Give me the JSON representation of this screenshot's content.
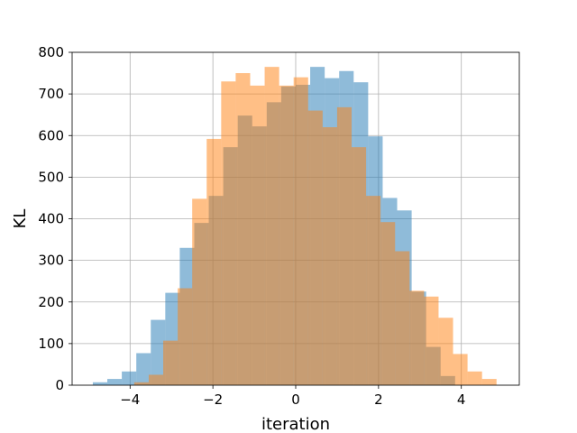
{
  "chart_data": {
    "type": "bar",
    "xlabel": "iteration",
    "ylabel": "KL",
    "xlim": [
      -5.4,
      5.4
    ],
    "ylim": [
      0,
      800
    ],
    "xticks": [
      -4,
      -2,
      0,
      2,
      4
    ],
    "xtick_labels": [
      "−4",
      "−2",
      "0",
      "2",
      "4"
    ],
    "yticks": [
      0,
      100,
      200,
      300,
      400,
      500,
      600,
      700,
      800
    ],
    "ytick_labels": [
      "0",
      "100",
      "200",
      "300",
      "400",
      "500",
      "600",
      "700",
      "800"
    ],
    "grid": true,
    "series": [
      {
        "color": "#1f77b4",
        "alpha": 0.5,
        "bin_edges": [
          -4.9,
          -4.55,
          -4.2,
          -3.85,
          -3.5,
          -3.15,
          -2.8,
          -2.45,
          -2.1,
          -1.75,
          -1.4,
          -1.05,
          -0.7,
          -0.35,
          0.0,
          0.35,
          0.7,
          1.05,
          1.4,
          1.75,
          2.1,
          2.45,
          2.8,
          3.15,
          3.5,
          3.85
        ],
        "values": [
          7,
          15,
          33,
          77,
          157,
          222,
          330,
          390,
          455,
          572,
          648,
          622,
          680,
          718,
          722,
          765,
          738,
          755,
          728,
          598,
          450,
          420,
          225,
          92,
          22
        ]
      },
      {
        "color": "#ff7f0e",
        "alpha": 0.5,
        "bin_edges": [
          -3.9,
          -3.55,
          -3.2,
          -2.85,
          -2.5,
          -2.15,
          -1.8,
          -1.45,
          -1.1,
          -0.75,
          -0.4,
          -0.05,
          0.3,
          0.65,
          1.0,
          1.35,
          1.7,
          2.05,
          2.4,
          2.75,
          3.1,
          3.45,
          3.8,
          4.15,
          4.5,
          4.85
        ],
        "values": [
          7,
          25,
          107,
          233,
          448,
          592,
          730,
          750,
          720,
          765,
          720,
          740,
          660,
          620,
          668,
          572,
          455,
          392,
          322,
          227,
          213,
          162,
          75,
          33,
          15
        ]
      }
    ]
  }
}
